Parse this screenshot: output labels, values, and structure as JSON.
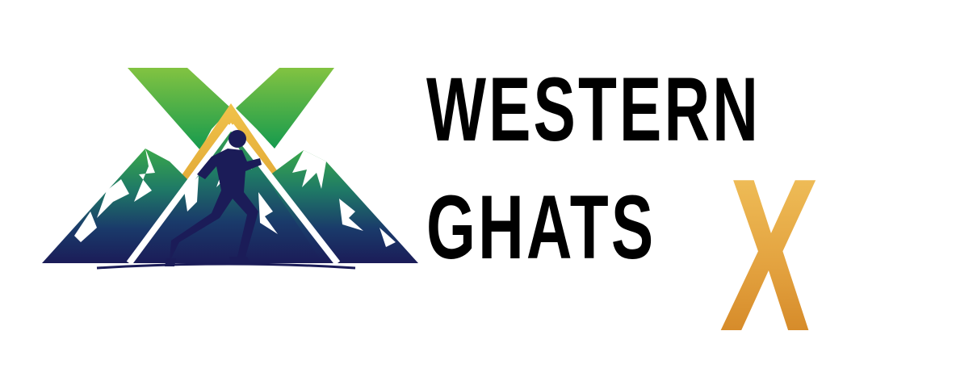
{
  "brand": {
    "line1": "WESTERN",
    "line2": "GHATS",
    "x_mark": "X"
  },
  "icon": {
    "name": "trail-runner-mountain-x-emblem",
    "colors": {
      "x_green_top": "#7cc242",
      "x_green_bottom": "#1ea34c",
      "mountain_top": "#2fa84a",
      "mountain_mid": "#1e6a6a",
      "mountain_bottom": "#1a1f5c",
      "peak_gold": "#e8b03a",
      "runner": "#1a1f5c"
    }
  },
  "colors": {
    "wordmark": "#000000",
    "gold_light": "#f2c55f",
    "gold_dark": "#cf7f1f",
    "background": "#ffffff"
  }
}
